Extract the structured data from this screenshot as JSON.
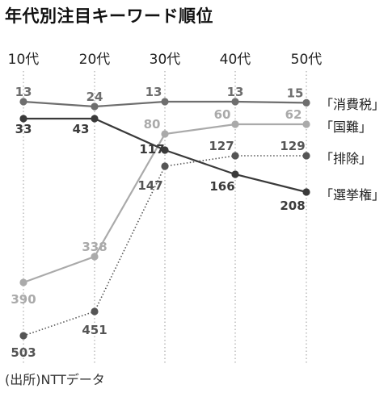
{
  "title": "年代別注目キーワード順位",
  "source": "(出所)NTTデータ",
  "chart_data": {
    "type": "line",
    "title": "年代別注目キーワード順位",
    "x": [
      "10代",
      "20代",
      "30代",
      "40代",
      "50代"
    ],
    "ylabel": "",
    "xlabel": "",
    "y_inverted": true,
    "grid": "vertical-dotted",
    "series": [
      {
        "name": "「消費税」",
        "values": [
          13,
          24,
          13,
          13,
          15
        ],
        "color": "#6e6e6e",
        "line": "solid"
      },
      {
        "name": "「国難」",
        "values": [
          390,
          338,
          80,
          60,
          62
        ],
        "color": "#aaaaaa",
        "line": "solid"
      },
      {
        "name": "「排除」",
        "values": [
          503,
          451,
          147,
          127,
          129
        ],
        "color": "#555555",
        "line": "dotted"
      },
      {
        "name": "「選挙権」",
        "values": [
          33,
          43,
          117,
          166,
          208
        ],
        "color": "#3a3a3a",
        "line": "solid"
      }
    ]
  }
}
